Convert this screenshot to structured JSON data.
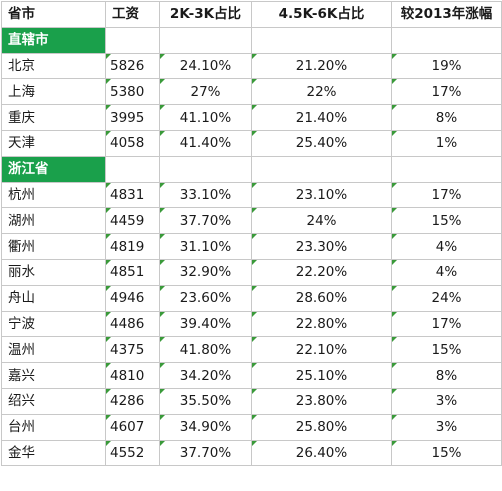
{
  "headers": [
    "省市",
    "工资",
    "2K-3K占比",
    "4.5K-6K占比",
    "较2013年涨幅"
  ],
  "groups": [
    {
      "name": "直辖市",
      "rows": [
        {
          "city": "北京",
          "wage": "5826",
          "p1": "24.10%",
          "p2": "21.20%",
          "growth": "19%"
        },
        {
          "city": "上海",
          "wage": "5380",
          "p1": "27%",
          "p2": "22%",
          "growth": "17%"
        },
        {
          "city": "重庆",
          "wage": "3995",
          "p1": "41.10%",
          "p2": "21.40%",
          "growth": "8%"
        },
        {
          "city": "天津",
          "wage": "4058",
          "p1": "41.40%",
          "p2": "25.40%",
          "growth": "1%"
        }
      ]
    },
    {
      "name": "浙江省",
      "rows": [
        {
          "city": "杭州",
          "wage": "4831",
          "p1": "33.10%",
          "p2": "23.10%",
          "growth": "17%"
        },
        {
          "city": "湖州",
          "wage": "4459",
          "p1": "37.70%",
          "p2": "24%",
          "growth": "15%"
        },
        {
          "city": "衢州",
          "wage": "4819",
          "p1": "31.10%",
          "p2": "23.30%",
          "growth": "4%"
        },
        {
          "city": "丽水",
          "wage": "4851",
          "p1": "32.90%",
          "p2": "22.20%",
          "growth": "4%"
        },
        {
          "city": "舟山",
          "wage": "4946",
          "p1": "23.60%",
          "p2": "28.60%",
          "growth": "24%"
        },
        {
          "city": "宁波",
          "wage": "4486",
          "p1": "39.40%",
          "p2": "22.80%",
          "growth": "17%"
        },
        {
          "city": "温州",
          "wage": "4375",
          "p1": "41.80%",
          "p2": "22.10%",
          "growth": "15%"
        },
        {
          "city": "嘉兴",
          "wage": "4810",
          "p1": "34.20%",
          "p2": "25.10%",
          "growth": "8%"
        },
        {
          "city": "绍兴",
          "wage": "4286",
          "p1": "35.50%",
          "p2": "23.80%",
          "growth": "3%"
        },
        {
          "city": "台州",
          "wage": "4607",
          "p1": "34.90%",
          "p2": "25.80%",
          "growth": "3%"
        },
        {
          "city": "金华",
          "wage": "4552",
          "p1": "37.70%",
          "p2": "26.40%",
          "growth": "15%"
        }
      ]
    }
  ],
  "colors": {
    "group_fill": "#1aa04b",
    "gridline": "#c8c8c8",
    "text_marker": "#3a9a3a"
  }
}
